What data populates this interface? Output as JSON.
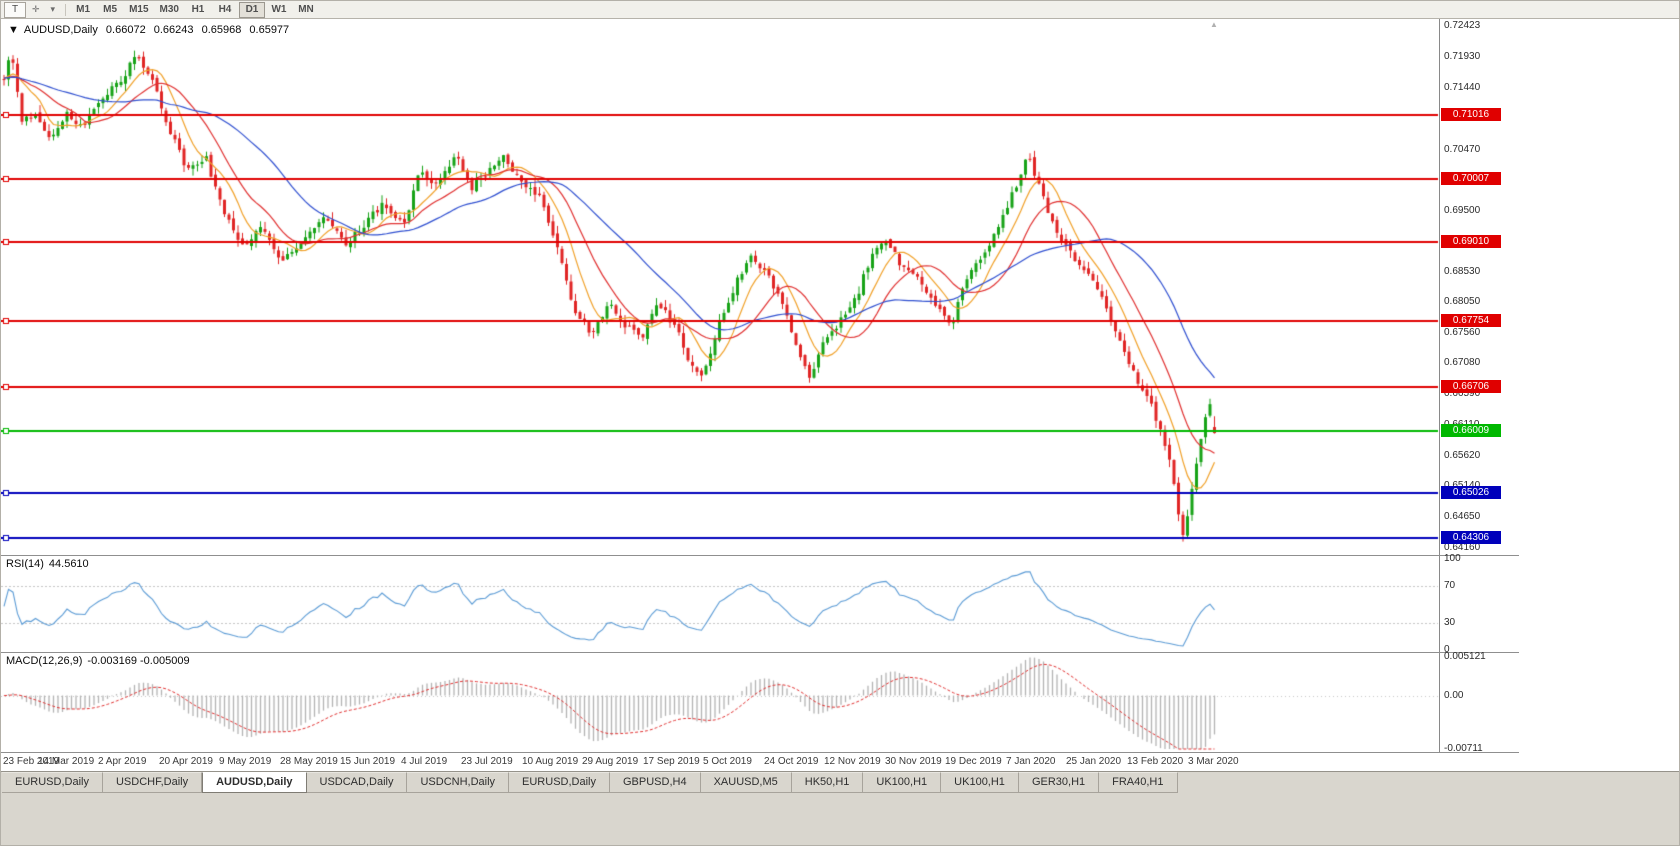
{
  "window": {
    "toolbar": {
      "tool_button": "T",
      "cursor_icon": "✛",
      "dropdown_icon": "▾",
      "timeframes": [
        "M1",
        "M5",
        "M15",
        "M30",
        "H1",
        "H4",
        "D1",
        "W1",
        "MN"
      ],
      "active_timeframe": "D1"
    },
    "tabs": [
      "EURUSD,Daily",
      "USDCHF,Daily",
      "AUDUSD,Daily",
      "USDCAD,Daily",
      "USDCNH,Daily",
      "EURUSD,Daily",
      "GBPUSD,H4",
      "XAUUSD,M5",
      "HK50,H1",
      "UK100,H1",
      "UK100,H1",
      "GER30,H1",
      "FRA40,H1"
    ],
    "active_tab_index": 2
  },
  "header": {
    "marker": "▼",
    "symbol": "AUDUSD,Daily",
    "open": "0.66072",
    "high": "0.66243",
    "low": "0.65968",
    "close": "0.65977"
  },
  "rsi_panel": {
    "label": "RSI(14)",
    "value": "44.5610",
    "period": 14,
    "levels": [
      70,
      30
    ],
    "axis_labels": [
      {
        "v": 100,
        "text": "100"
      },
      {
        "v": 70,
        "text": "70"
      },
      {
        "v": 30,
        "text": "30"
      },
      {
        "v": 0,
        "text": "0"
      }
    ]
  },
  "macd_panel": {
    "label": "MACD(12,26,9)",
    "value": "-0.003169 -0.005009",
    "fast": 12,
    "slow": 26,
    "signal": 9,
    "scale_max": 0.005121,
    "scale_min": -0.00711,
    "axis_labels": [
      {
        "v": 0.005121,
        "text": "0.005121"
      },
      {
        "v": 0,
        "text": "0.00"
      },
      {
        "v": -0.00711,
        "text": "-0.00711"
      }
    ]
  },
  "chart_data": {
    "type": "candlestick",
    "symbol": "AUDUSD",
    "timeframe": "Daily",
    "visible_bars": 270,
    "price_axis": {
      "top_price": 0.7254,
      "bottom_price": 0.6406,
      "ticks": [
        "0.72423",
        "0.71930",
        "0.71440",
        "0.70470",
        "0.69500",
        "0.68530",
        "0.68050",
        "0.67560",
        "0.67080",
        "0.66590",
        "0.66110",
        "0.65620",
        "0.65140",
        "0.64650",
        "0.64160"
      ]
    },
    "hlines": [
      {
        "price": 0.71016,
        "label": "0.71016",
        "color": "#e00000"
      },
      {
        "price": 0.70007,
        "label": "0.70007",
        "color": "#e00000"
      },
      {
        "price": 0.6901,
        "label": "0.69010",
        "color": "#e00000"
      },
      {
        "price": 0.67754,
        "label": "0.67754",
        "color": "#e00000"
      },
      {
        "price": 0.66706,
        "label": "0.66706",
        "color": "#e00000"
      },
      {
        "price": 0.66009,
        "label": "0.66009",
        "color": "#00b800"
      },
      {
        "price": 0.65026,
        "label": "0.65026",
        "color": "#0000bb"
      },
      {
        "price": 0.64306,
        "label": "0.64306",
        "color": "#0000bb"
      }
    ],
    "moving_averages": [
      {
        "period": 8,
        "color": "#f0a028"
      },
      {
        "period": 16,
        "color": "#e03030"
      },
      {
        "period": 34,
        "color": "#2f4fd0"
      }
    ],
    "last_candle": {
      "open": 0.66072,
      "high": 0.66243,
      "low": 0.65968,
      "close": 0.65977
    },
    "noise": {
      "seed": 424242,
      "body": 0.0012,
      "gap": 0.0007,
      "wick": 0.0012
    },
    "price_path": [
      [
        0.0,
        0.716
      ],
      [
        0.006,
        0.7208
      ],
      [
        0.014,
        0.7092
      ],
      [
        0.026,
        0.7105
      ],
      [
        0.038,
        0.7058
      ],
      [
        0.052,
        0.7108
      ],
      [
        0.064,
        0.708
      ],
      [
        0.082,
        0.7128
      ],
      [
        0.098,
        0.7162
      ],
      [
        0.11,
        0.7198
      ],
      [
        0.124,
        0.7152
      ],
      [
        0.138,
        0.7072
      ],
      [
        0.152,
        0.7012
      ],
      [
        0.166,
        0.7038
      ],
      [
        0.182,
        0.6948
      ],
      [
        0.198,
        0.6888
      ],
      [
        0.212,
        0.6926
      ],
      [
        0.228,
        0.6872
      ],
      [
        0.248,
        0.6906
      ],
      [
        0.266,
        0.6944
      ],
      [
        0.282,
        0.6892
      ],
      [
        0.298,
        0.693
      ],
      [
        0.314,
        0.6963
      ],
      [
        0.33,
        0.6925
      ],
      [
        0.344,
        0.7015
      ],
      [
        0.358,
        0.6988
      ],
      [
        0.373,
        0.7038
      ],
      [
        0.386,
        0.6985
      ],
      [
        0.399,
        0.701
      ],
      [
        0.412,
        0.7043
      ],
      [
        0.427,
        0.6996
      ],
      [
        0.442,
        0.6975
      ],
      [
        0.457,
        0.6892
      ],
      [
        0.471,
        0.6792
      ],
      [
        0.486,
        0.6753
      ],
      [
        0.499,
        0.6806
      ],
      [
        0.513,
        0.6768
      ],
      [
        0.527,
        0.6746
      ],
      [
        0.541,
        0.6806
      ],
      [
        0.555,
        0.6763
      ],
      [
        0.569,
        0.6701
      ],
      [
        0.577,
        0.6686
      ],
      [
        0.591,
        0.6776
      ],
      [
        0.605,
        0.6836
      ],
      [
        0.617,
        0.6878
      ],
      [
        0.631,
        0.6846
      ],
      [
        0.644,
        0.6796
      ],
      [
        0.657,
        0.6722
      ],
      [
        0.665,
        0.6681
      ],
      [
        0.677,
        0.6746
      ],
      [
        0.691,
        0.6776
      ],
      [
        0.704,
        0.6812
      ],
      [
        0.717,
        0.6882
      ],
      [
        0.729,
        0.6902
      ],
      [
        0.741,
        0.6863
      ],
      [
        0.755,
        0.6846
      ],
      [
        0.769,
        0.6802
      ],
      [
        0.783,
        0.677
      ],
      [
        0.797,
        0.6852
      ],
      [
        0.811,
        0.6886
      ],
      [
        0.825,
        0.694
      ],
      [
        0.838,
        0.7
      ],
      [
        0.846,
        0.7036
      ],
      [
        0.856,
        0.6986
      ],
      [
        0.866,
        0.6932
      ],
      [
        0.876,
        0.6898
      ],
      [
        0.886,
        0.6868
      ],
      [
        0.896,
        0.6848
      ],
      [
        0.906,
        0.6812
      ],
      [
        0.916,
        0.6772
      ],
      [
        0.926,
        0.672
      ],
      [
        0.936,
        0.6684
      ],
      [
        0.944,
        0.666
      ],
      [
        0.952,
        0.6618
      ],
      [
        0.958,
        0.6585
      ],
      [
        0.964,
        0.6552
      ],
      [
        0.97,
        0.6468
      ],
      [
        0.9745,
        0.6436
      ],
      [
        0.98,
        0.6492
      ],
      [
        0.986,
        0.6562
      ],
      [
        0.992,
        0.6622
      ],
      [
        0.996,
        0.6641
      ],
      [
        1.0,
        0.6601
      ]
    ],
    "dates": [
      "23 Feb 2019",
      "14 Mar 2019",
      "2 Apr 2019",
      "20 Apr 2019",
      "9 May 2019",
      "28 May 2019",
      "15 Jun 2019",
      "4 Jul 2019",
      "23 Jul 2019",
      "10 Aug 2019",
      "29 Aug 2019",
      "17 Sep 2019",
      "5 Oct 2019",
      "24 Oct 2019",
      "12 Nov 2019",
      "30 Nov 2019",
      "19 Dec 2019",
      "7 Jan 2020",
      "25 Jan 2020",
      "13 Feb 2020",
      "3 Mar 2020"
    ]
  },
  "colors": {
    "bull": "#17a317",
    "bear": "#e02525",
    "rsi_line": "#5b9bd5",
    "macd_hist": "#b2b2b2",
    "macd_signal": "#e03030",
    "level_dash": "#c4c4c4",
    "axis_text": "#2a2a2a"
  }
}
